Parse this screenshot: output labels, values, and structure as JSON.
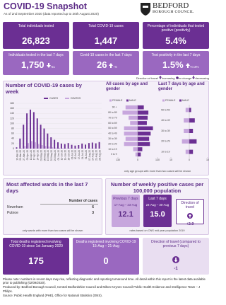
{
  "header": {
    "title": "COVID-19 Snapshot",
    "subtitle": "As of 2nd September 2020 (data reported up to 30th August 2020)",
    "logo_line1": "BEDFORD",
    "logo_line2": "BOROUGH COUNCIL"
  },
  "tiles": [
    {
      "label": "Total individuals tested",
      "value": "26,823"
    },
    {
      "label": "Total COVID-19 cases",
      "value": "1,447"
    },
    {
      "label": "Percentage of individuals that tested positive (positivity)",
      "value": "5.4%"
    }
  ],
  "weekly_tiles": [
    {
      "label": "Individuals tested in the last 7 days",
      "value": "1,750",
      "change": "-51"
    },
    {
      "label": "Covid-19 cases in the last 7 days",
      "value": "26",
      "change": "+5"
    },
    {
      "label": "Test positivity in the last 7 days",
      "value": "1.5%",
      "change": "+0.3%"
    }
  ],
  "travel_legend": {
    "title": "Direction of travel",
    "up": "Increasing",
    "same": "no change",
    "down": "decreasing"
  },
  "chart_data": [
    {
      "type": "bar",
      "title": "Number of COVID-19 cases by week",
      "categories": [
        "13-Mar-20",
        "20-Mar-20",
        "27-Mar-20",
        "03-Apr-20",
        "10-Apr-20",
        "17-Apr-20",
        "24-Apr-20",
        "01-May-20",
        "08-May-20",
        "15-May-20",
        "22-May-20",
        "29-May-20",
        "05-Jun-20",
        "12-Jun-20",
        "19-Jun-20",
        "26-Jun-20",
        "03-Jul-20",
        "10-Jul-20",
        "17-Jul-20",
        "24-Jul-20",
        "31-Jul-20",
        "07-Aug-20",
        "14-Aug-20",
        "21-Aug-20",
        "28-Aug-20"
      ],
      "series": [
        {
          "name": "CASES",
          "color": "#6b2f93",
          "values": [
            5,
            40,
            95,
            140,
            155,
            145,
            120,
            95,
            80,
            60,
            45,
            35,
            25,
            20,
            18,
            22,
            15,
            12,
            14,
            20,
            16,
            22,
            24,
            21,
            26
          ]
        },
        {
          "name": "DEATHS",
          "color": "#c7a6dd",
          "values": [
            0,
            2,
            10,
            22,
            30,
            25,
            18,
            14,
            10,
            8,
            5,
            4,
            3,
            2,
            1,
            2,
            1,
            1,
            0,
            1,
            0,
            1,
            1,
            0,
            0
          ]
        }
      ],
      "ylim": [
        0,
        180
      ],
      "yticks": [
        0,
        20,
        40,
        60,
        80,
        100,
        120,
        140,
        160,
        180
      ],
      "grid": true
    },
    {
      "type": "pyramid",
      "title": "All cases by age and gender",
      "categories": [
        "90 +",
        "80 to 89",
        "70 to 79",
        "60 to 69",
        "50 to 59",
        "40 to 49",
        "30 to 39",
        "20 to 29",
        "10 to 19",
        "0 to 9"
      ],
      "series": [
        {
          "name": "FEMALE",
          "color": "#c7a6dd",
          "values": [
            80,
            100,
            60,
            50,
            90,
            90,
            80,
            90,
            30,
            15
          ]
        },
        {
          "name": "MALE",
          "color": "#6b2f93",
          "values": [
            40,
            70,
            65,
            60,
            100,
            85,
            75,
            80,
            30,
            20
          ]
        }
      ],
      "xlim": [
        -130,
        130
      ],
      "xticks": [
        {
          "value": -130,
          "label": "130"
        },
        0,
        130
      ]
    },
    {
      "type": "pyramid",
      "title": "Last 7 days by age and gender",
      "categories": [
        "50 to 59",
        "40 to 49",
        "30 to 39",
        "20 to 29",
        "10 to 19"
      ],
      "series": [
        {
          "name": "FEMALE",
          "color": "#c7a6dd",
          "values": [
            2,
            3,
            3,
            4,
            2
          ]
        },
        {
          "name": "MALE",
          "color": "#6b2f93",
          "values": [
            1,
            3,
            2,
            4,
            2
          ]
        }
      ],
      "xlim": [
        -10,
        10
      ],
      "xticks": [
        {
          "value": -10,
          "label": "10"
        },
        0,
        10
      ]
    }
  ],
  "chart_note": "only age groups with more than two cases will be shown",
  "wards": {
    "title": "Most affected wards in the last 7 days",
    "column": "Number of cases",
    "rows": [
      [
        "Newnham",
        "6"
      ],
      [
        "Putnoe",
        "3"
      ]
    ],
    "note": "only wards with more than two cases will be shown"
  },
  "rates": {
    "title": "Number of weekly positive cases per 100,000 population",
    "previous": {
      "label": "Previous 7 days",
      "dates": "17-Aug – 23-Aug",
      "value": "12.1"
    },
    "last": {
      "label": "Last 7 days",
      "dates": "24-Aug – 30-Aug",
      "value": "15.0"
    },
    "direction": {
      "label": "Direction of travel",
      "value": "+2.9"
    },
    "note": "rates based on ONS mid year population 2019"
  },
  "deaths": [
    {
      "label": "Total deaths registered involving COVID-19 since 1st January 2020",
      "value": "175"
    },
    {
      "label": "Deaths registered involving COVID-19 15-Aug – 21-Aug",
      "value": "0"
    },
    {
      "label": "Direction of travel (compared to previous 7 days)",
      "value": "-1"
    }
  ],
  "footer": [
    "Please note: numbers in recent days may rise, reflecting diagnostic and reporting turnaround time.  All detail within this report is the latest data available prior to publishing (02/09/2020).",
    "Produced by: Bedford Borough Council, Central Bedfordshire Council and Milton Keynes Council Public Health Evidence and Intelligence Team – J Philips.",
    "Source: Public Health England (PHE), Office for National Statistics (ONS)."
  ]
}
